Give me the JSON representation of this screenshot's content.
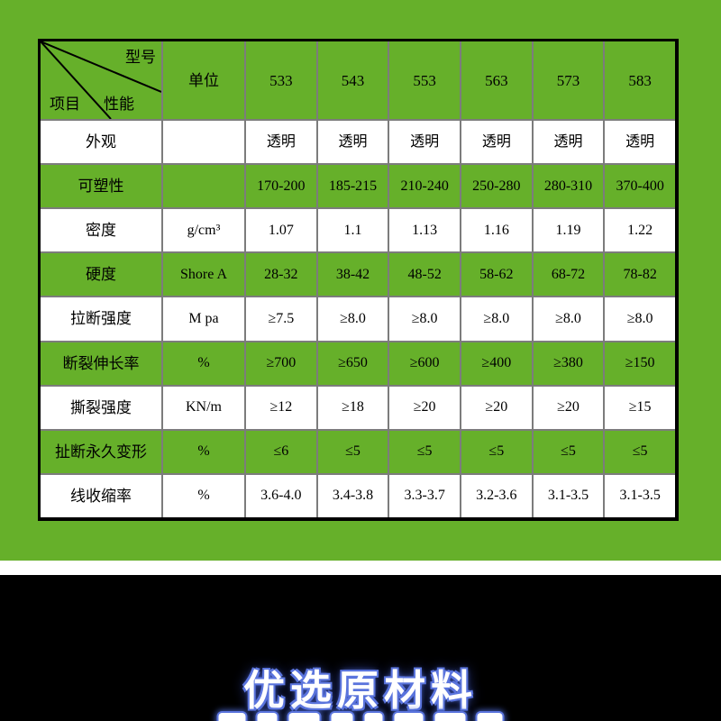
{
  "table": {
    "corner": {
      "top_label": "型号",
      "middle_label": "性能",
      "bottom_label": "项目"
    },
    "unit_header": "单位",
    "models": [
      "533",
      "543",
      "553",
      "563",
      "573",
      "583"
    ],
    "rows": [
      {
        "label": "外观",
        "unit": "",
        "shade": "white",
        "values": [
          "透明",
          "透明",
          "透明",
          "透明",
          "透明",
          "透明"
        ]
      },
      {
        "label": "可塑性",
        "unit": "",
        "shade": "green",
        "values": [
          "170-200",
          "185-215",
          "210-240",
          "250-280",
          "280-310",
          "370-400"
        ]
      },
      {
        "label": "密度",
        "unit": "g/cm³",
        "shade": "white",
        "values": [
          "1.07",
          "1.1",
          "1.13",
          "1.16",
          "1.19",
          "1.22"
        ]
      },
      {
        "label": "硬度",
        "unit": "Shore A",
        "shade": "green",
        "values": [
          "28-32",
          "38-42",
          "48-52",
          "58-62",
          "68-72",
          "78-82"
        ]
      },
      {
        "label": "拉断强度",
        "unit": "M pa",
        "shade": "white",
        "values": [
          "≥7.5",
          "≥8.0",
          "≥8.0",
          "≥8.0",
          "≥8.0",
          "≥8.0"
        ]
      },
      {
        "label": "断裂伸长率",
        "unit": "%",
        "shade": "green",
        "values": [
          "≥700",
          "≥650",
          "≥600",
          "≥400",
          "≥380",
          "≥150"
        ]
      },
      {
        "label": "撕裂强度",
        "unit": "KN/m",
        "shade": "white",
        "values": [
          "≥12",
          "≥18",
          "≥20",
          "≥20",
          "≥20",
          "≥15"
        ]
      },
      {
        "label": "扯断永久变形",
        "unit": "%",
        "shade": "green",
        "values": [
          "≤6",
          "≤5",
          "≤5",
          "≤5",
          "≤5",
          "≤5"
        ]
      },
      {
        "label": "线收缩率",
        "unit": "%",
        "shade": "white",
        "values": [
          "3.6-4.0",
          "3.4-3.8",
          "3.3-3.7",
          "3.2-3.6",
          "3.1-3.5",
          "3.1-3.5"
        ]
      }
    ]
  },
  "footer": {
    "headline": "优选原材料",
    "second_line_partially_visible": true
  },
  "colors": {
    "background_green": "#66b02a",
    "row_green": "#66b02a",
    "row_white": "#ffffff",
    "grid_line": "#7c7c7c",
    "table_border": "#000000",
    "footer_background": "#000000",
    "headline_text": "#ffffff",
    "headline_glow": "#5a74dd"
  }
}
